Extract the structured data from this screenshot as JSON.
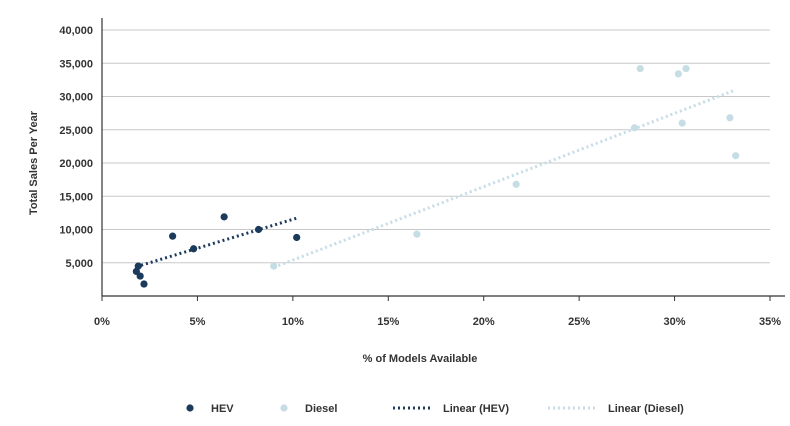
{
  "chart_data": {
    "type": "scatter",
    "title": "",
    "xlabel": "% of Models Available",
    "ylabel": "Total Sales Per Year",
    "xlim": [
      0,
      35
    ],
    "ylim": [
      0,
      40000
    ],
    "x_ticks": [
      0,
      5,
      10,
      15,
      20,
      25,
      30,
      35
    ],
    "x_tick_labels": [
      "0%",
      "5%",
      "10%",
      "15%",
      "20%",
      "25%",
      "30%",
      "35%"
    ],
    "y_ticks": [
      5000,
      10000,
      15000,
      20000,
      25000,
      30000,
      35000,
      40000
    ],
    "y_tick_labels": [
      "5,000",
      "10,000",
      "15,000",
      "20,000",
      "25,000",
      "30,000",
      "35,000",
      "40,000"
    ],
    "grid": "horizontal",
    "legend_position": "bottom",
    "series": [
      {
        "name": "HEV",
        "kind": "scatter",
        "color": "#1b3a5c",
        "points": [
          {
            "x": 1.8,
            "y": 3700
          },
          {
            "x": 1.9,
            "y": 4500
          },
          {
            "x": 2.0,
            "y": 3000
          },
          {
            "x": 2.2,
            "y": 1800
          },
          {
            "x": 3.7,
            "y": 9000
          },
          {
            "x": 4.8,
            "y": 7100
          },
          {
            "x": 6.4,
            "y": 11900
          },
          {
            "x": 8.2,
            "y": 10000
          },
          {
            "x": 10.2,
            "y": 8800
          }
        ]
      },
      {
        "name": "Diesel",
        "kind": "scatter",
        "color": "#c6dde6",
        "points": [
          {
            "x": 9.0,
            "y": 4500
          },
          {
            "x": 16.5,
            "y": 9300
          },
          {
            "x": 21.7,
            "y": 16800
          },
          {
            "x": 27.9,
            "y": 25300
          },
          {
            "x": 28.2,
            "y": 34200
          },
          {
            "x": 30.2,
            "y": 33400
          },
          {
            "x": 30.4,
            "y": 26000
          },
          {
            "x": 30.6,
            "y": 34200
          },
          {
            "x": 32.9,
            "y": 26800
          },
          {
            "x": 33.2,
            "y": 21100
          }
        ]
      },
      {
        "name": "Linear (HEV)",
        "kind": "trendline",
        "color": "#1b3a5c",
        "points": [
          {
            "x": 1.8,
            "y": 4400
          },
          {
            "x": 10.2,
            "y": 11700
          }
        ]
      },
      {
        "name": "Linear (Diesel)",
        "kind": "trendline",
        "color": "#c6dde6",
        "points": [
          {
            "x": 9.0,
            "y": 4300
          },
          {
            "x": 33.2,
            "y": 31000
          }
        ]
      }
    ]
  }
}
